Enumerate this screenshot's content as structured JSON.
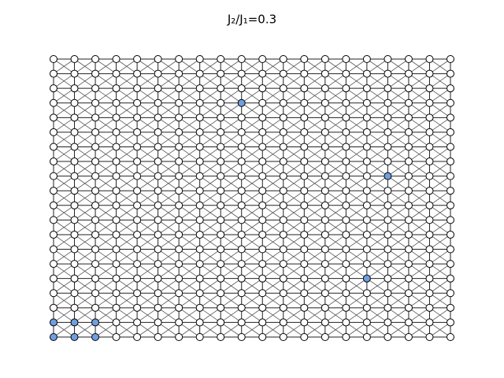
{
  "title": "J₂/J₁=0.3",
  "lattice": {
    "columns": 20,
    "rows": 20,
    "node_color": "#ffffff",
    "highlight_color": "#6f9fe0",
    "edge_color": "#222222",
    "diagonal_color": "#555555",
    "highlighted": [
      [
        0,
        18
      ],
      [
        1,
        18
      ],
      [
        2,
        18
      ],
      [
        0,
        19
      ],
      [
        1,
        19
      ],
      [
        2,
        19
      ],
      [
        9,
        3
      ],
      [
        16,
        8
      ],
      [
        15,
        15
      ]
    ]
  }
}
